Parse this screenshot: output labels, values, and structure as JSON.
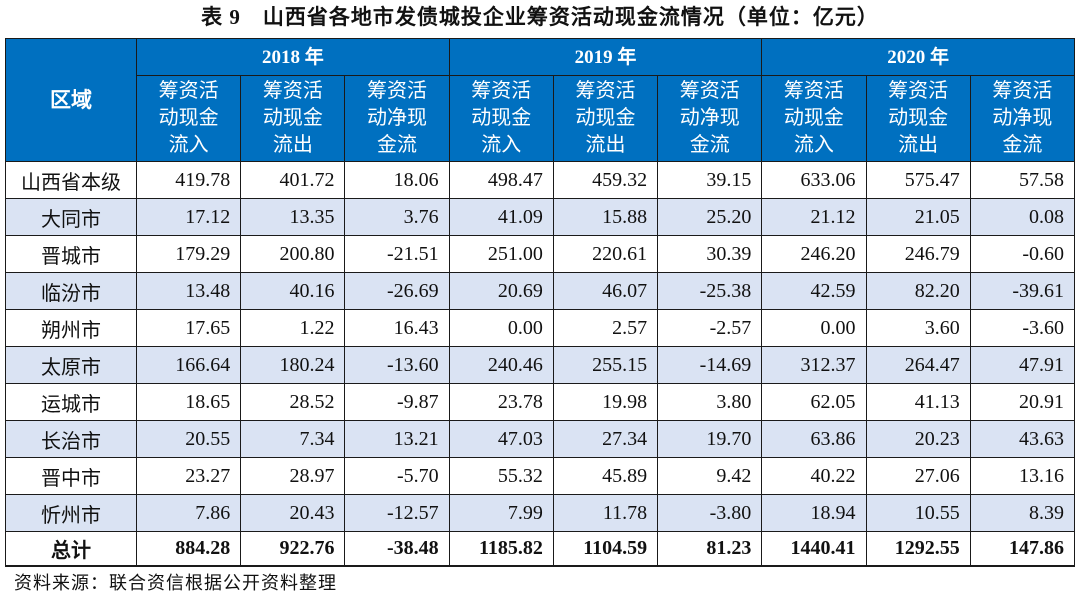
{
  "title": "表 9　山西省各地市发债城投企业筹资活动现金流情况（单位：亿元）",
  "colors": {
    "header_bg": "#0070C0",
    "stripe": "#DAE3F3"
  },
  "table": {
    "region_header": "区域",
    "years": [
      "2018 年",
      "2019 年",
      "2020 年"
    ],
    "sub_headers": [
      "筹资活动现金流入",
      "筹资活动现金流出",
      "筹资活动净现金流"
    ],
    "rows": [
      {
        "name": "山西省本级",
        "values": [
          "419.78",
          "401.72",
          "18.06",
          "498.47",
          "459.32",
          "39.15",
          "633.06",
          "575.47",
          "57.58"
        ]
      },
      {
        "name": "大同市",
        "values": [
          "17.12",
          "13.35",
          "3.76",
          "41.09",
          "15.88",
          "25.20",
          "21.12",
          "21.05",
          "0.08"
        ]
      },
      {
        "name": "晋城市",
        "values": [
          "179.29",
          "200.80",
          "-21.51",
          "251.00",
          "220.61",
          "30.39",
          "246.20",
          "246.79",
          "-0.60"
        ]
      },
      {
        "name": "临汾市",
        "values": [
          "13.48",
          "40.16",
          "-26.69",
          "20.69",
          "46.07",
          "-25.38",
          "42.59",
          "82.20",
          "-39.61"
        ]
      },
      {
        "name": "朔州市",
        "values": [
          "17.65",
          "1.22",
          "16.43",
          "0.00",
          "2.57",
          "-2.57",
          "0.00",
          "3.60",
          "-3.60"
        ]
      },
      {
        "name": "太原市",
        "values": [
          "166.64",
          "180.24",
          "-13.60",
          "240.46",
          "255.15",
          "-14.69",
          "312.37",
          "264.47",
          "47.91"
        ]
      },
      {
        "name": "运城市",
        "values": [
          "18.65",
          "28.52",
          "-9.87",
          "23.78",
          "19.98",
          "3.80",
          "62.05",
          "41.13",
          "20.91"
        ]
      },
      {
        "name": "长治市",
        "values": [
          "20.55",
          "7.34",
          "13.21",
          "47.03",
          "27.34",
          "19.70",
          "63.86",
          "20.23",
          "43.63"
        ]
      },
      {
        "name": "晋中市",
        "values": [
          "23.27",
          "28.97",
          "-5.70",
          "55.32",
          "45.89",
          "9.42",
          "40.22",
          "27.06",
          "13.16"
        ]
      },
      {
        "name": "忻州市",
        "values": [
          "7.86",
          "20.43",
          "-12.57",
          "7.99",
          "11.78",
          "-3.80",
          "18.94",
          "10.55",
          "8.39"
        ]
      }
    ],
    "total": {
      "name": "总计",
      "values": [
        "884.28",
        "922.76",
        "-38.48",
        "1185.82",
        "1104.59",
        "81.23",
        "1440.41",
        "1292.55",
        "147.86"
      ]
    }
  },
  "source": "资料来源：联合资信根据公开资料整理"
}
